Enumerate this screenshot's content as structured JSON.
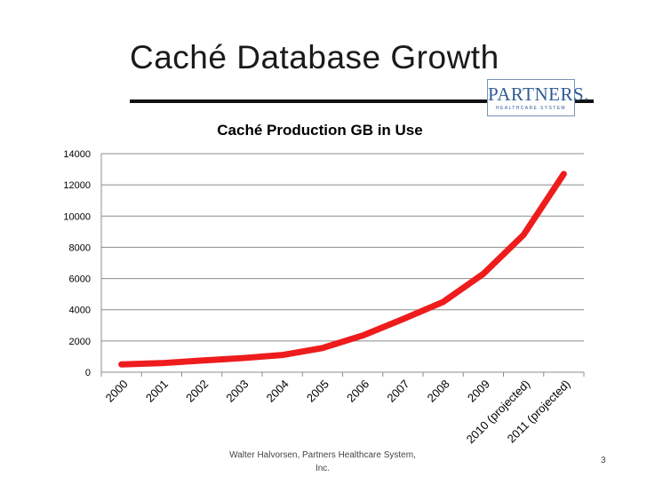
{
  "slide": {
    "title": "Caché Database Growth",
    "footer": "Walter Halvorsen, Partners Healthcare System, Inc.",
    "page_number": "3"
  },
  "logo": {
    "text": "PARTNERS.",
    "subtext": "HEALTHCARE SYSTEM"
  },
  "colors": {
    "line": "#ee1c1c",
    "grid": "#8c8c8c",
    "text": "#000000",
    "logo": "#2d5b95"
  },
  "chart_data": {
    "type": "line",
    "title": "Caché Production GB in Use",
    "categories": [
      "2000",
      "2001",
      "2002",
      "2003",
      "2004",
      "2005",
      "2006",
      "2007",
      "2008",
      "2009",
      "2010 (projected)",
      "2011 (projected)"
    ],
    "series": [
      {
        "values": [
          500,
          580,
          750,
          900,
          1100,
          1550,
          2350,
          3400,
          4500,
          6300,
          8800,
          12700
        ]
      }
    ],
    "ylim": [
      0,
      14000
    ],
    "yticks": [
      0,
      2000,
      4000,
      6000,
      8000,
      10000,
      12000,
      14000
    ],
    "grid": true,
    "legend": "none"
  }
}
